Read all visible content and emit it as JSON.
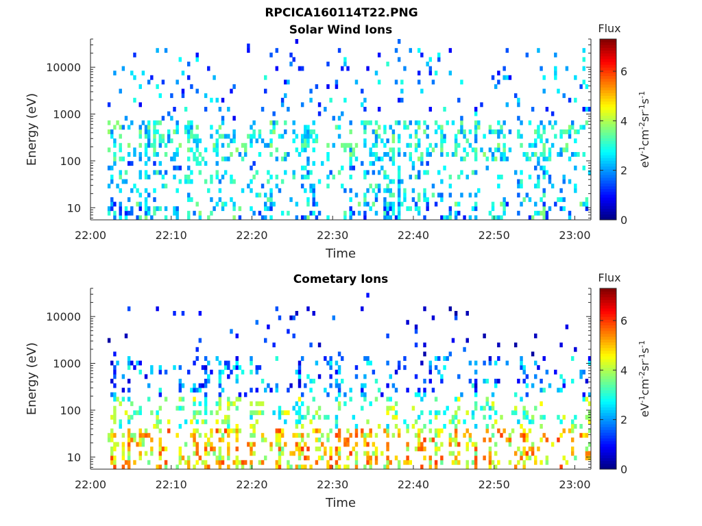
{
  "figure": {
    "filename": "RPCICA160114T22.PNG"
  },
  "colorbar": {
    "label": "Flux",
    "unit_html": [
      "eV",
      "-1",
      "cm",
      "-2",
      "sr",
      "-1",
      "s",
      "-1"
    ],
    "ticks": [
      0,
      2,
      4,
      6
    ],
    "range": [
      0,
      7.3
    ]
  },
  "chart_data": [
    {
      "type": "heatmap",
      "title": "Solar Wind Ions",
      "xlabel": "Time",
      "ylabel": "Energy (eV)",
      "x_ticks": [
        "22:00",
        "22:10",
        "22:20",
        "22:30",
        "22:40",
        "22:50",
        "23:00"
      ],
      "x_range_minutes": [
        0,
        62
      ],
      "y_ticks": [
        10,
        100,
        1000,
        10000
      ],
      "y_range": [
        5.5,
        40000
      ],
      "y_scale": "log",
      "color_range": [
        0,
        7.3
      ],
      "description_bands": [
        {
          "energy_min": 6,
          "energy_max": 14,
          "flux_level": 1.2
        },
        {
          "energy_min": 14,
          "energy_max": 60,
          "flux_level": 2.8
        },
        {
          "energy_min": 100,
          "energy_max": 800,
          "flux_level": 3.0
        },
        {
          "energy_min": 800,
          "energy_max": 20000,
          "flux_level": 2.0
        }
      ]
    },
    {
      "type": "heatmap",
      "title": "Cometary Ions",
      "xlabel": "Time",
      "ylabel": "Energy (eV)",
      "x_ticks": [
        "22:00",
        "22:10",
        "22:20",
        "22:30",
        "22:40",
        "22:50",
        "23:00"
      ],
      "x_range_minutes": [
        0,
        62
      ],
      "y_ticks": [
        10,
        100,
        1000,
        10000
      ],
      "y_range": [
        5.5,
        40000
      ],
      "y_scale": "log",
      "color_range": [
        0,
        7.3
      ],
      "description_bands": [
        {
          "energy_min": 6,
          "energy_max": 45,
          "flux_level": 5.0
        },
        {
          "energy_min": 45,
          "energy_max": 200,
          "flux_level": 3.3
        },
        {
          "energy_min": 200,
          "energy_max": 1500,
          "flux_level": 2.2
        },
        {
          "energy_min": 1500,
          "energy_max": 15000,
          "flux_level": 0.8
        }
      ]
    }
  ]
}
